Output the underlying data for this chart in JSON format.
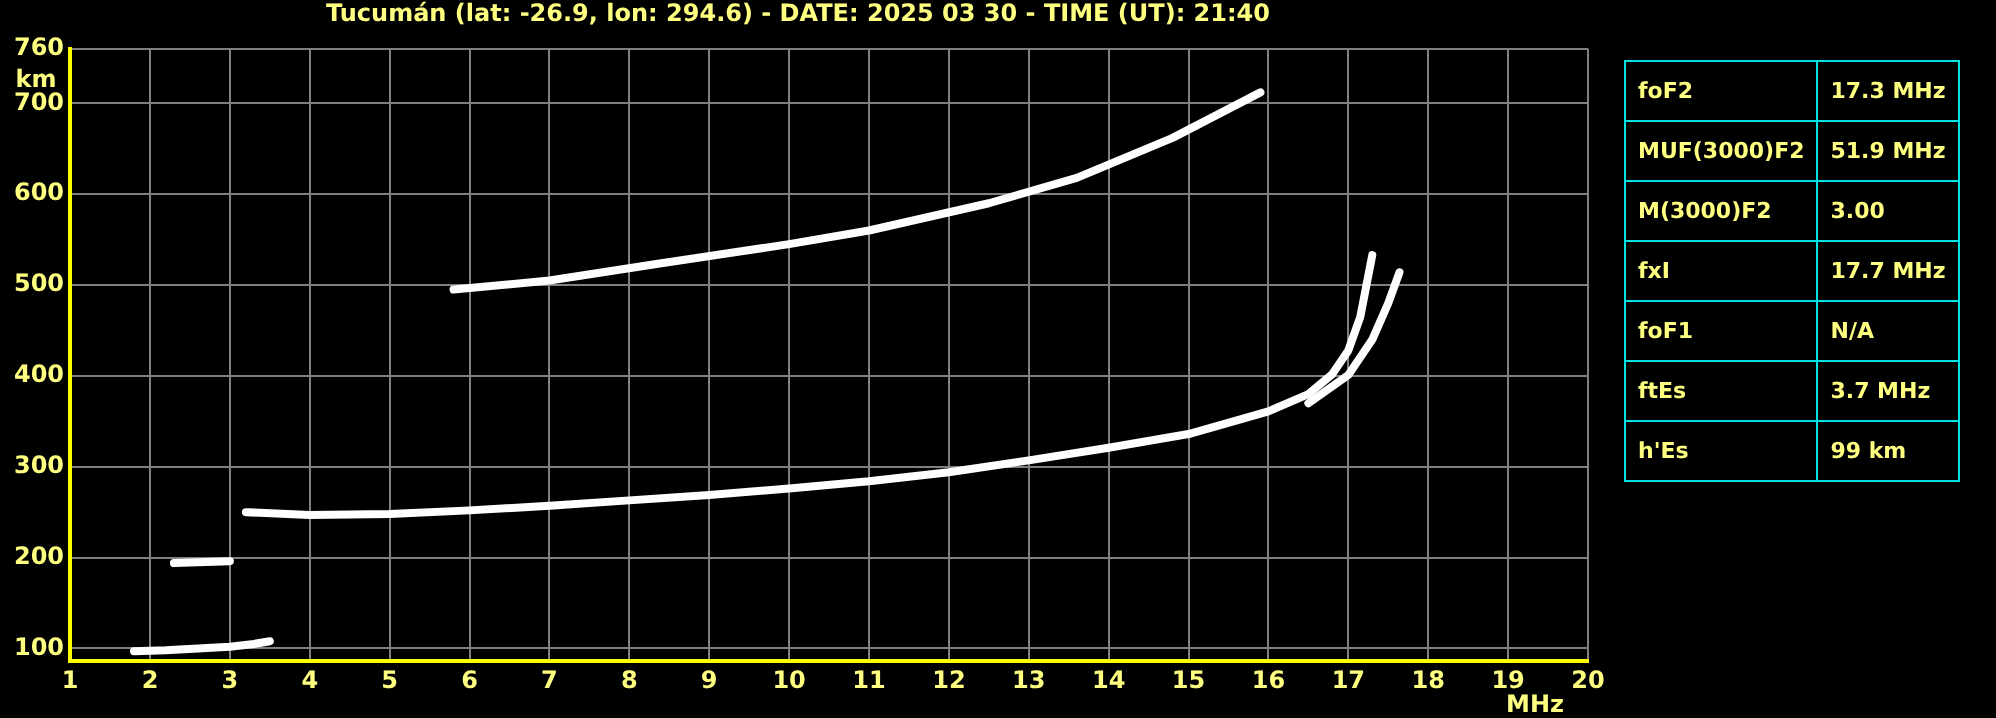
{
  "chart_data": {
    "type": "line",
    "title": "Tucumán (lat: -26.9, lon: 294.6) - DATE: 2025 03 30 - TIME (UT): 21:40",
    "xlabel": "MHz",
    "ylabel": "km",
    "xlim": [
      1,
      20
    ],
    "xticks": [
      1,
      2,
      3,
      4,
      5,
      6,
      7,
      8,
      9,
      10,
      11,
      12,
      13,
      14,
      15,
      16,
      17,
      18,
      19,
      20
    ],
    "ylim": [
      86,
      760
    ],
    "yticks": [
      100,
      200,
      300,
      400,
      500,
      600,
      700,
      760
    ],
    "grid": true,
    "legend": false,
    "marker": "none",
    "line_style": "solid",
    "series": [
      {
        "color": "#ffffff",
        "x": [
          1.8,
          2.2,
          2.6,
          3.0,
          3.3,
          3.5
        ],
        "values": [
          97,
          98,
          100,
          102,
          105,
          108
        ]
      },
      {
        "color": "#ffffff",
        "x": [
          2.3,
          3.0
        ],
        "values": [
          194,
          196
        ]
      },
      {
        "color": "#ffffff",
        "x": [
          3.2,
          4,
          5,
          6,
          7,
          8,
          9,
          10,
          11,
          12,
          13,
          14,
          15,
          16,
          16.5,
          16.8,
          17,
          17.15,
          17.3
        ],
        "values": [
          250,
          247,
          248,
          252,
          257,
          263,
          269,
          276,
          284,
          294,
          307,
          321,
          336,
          361,
          380,
          402,
          428,
          465,
          533
        ]
      },
      {
        "color": "#ffffff",
        "x": [
          16.5,
          17,
          17.3,
          17.5,
          17.64
        ],
        "values": [
          370,
          401,
          440,
          480,
          514
        ]
      },
      {
        "color": "#ffffff",
        "x": [
          5.8,
          7,
          8.4,
          10,
          11,
          12.5,
          13.6,
          14.8,
          15.9
        ],
        "values": [
          495,
          505,
          524,
          545,
          560,
          590,
          618,
          662,
          712
        ]
      }
    ],
    "annotations": [
      "foF2",
      "17.3 MHz",
      "MUF(3000)F2",
      "51.9 MHz",
      "M(3000)F2",
      "3.00",
      "fxI",
      "17.7 MHz",
      "foF1",
      "N/A",
      "ftEs",
      "3.7 MHz",
      "h'Es",
      "99 km"
    ]
  }
}
